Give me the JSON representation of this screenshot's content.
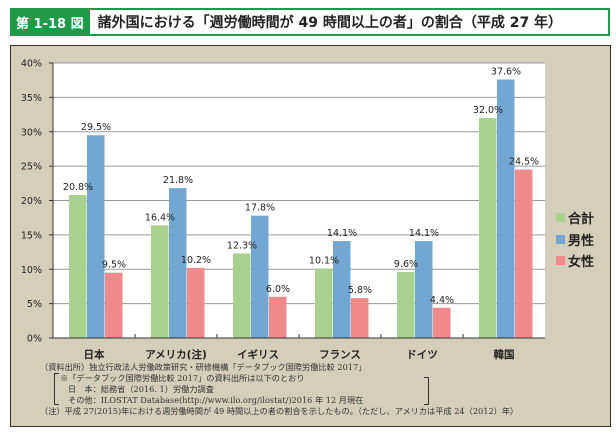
{
  "header": {
    "figure_number": "第 1-18 図",
    "title": "諸外国における「週労働時間が 49 時間以上の者」の割合（平成 27 年）"
  },
  "chart_data": {
    "type": "bar",
    "title": "諸外国における「週労働時間が 49 時間以上の者」の割合（平成 27 年）",
    "xlabel": "",
    "ylabel": "",
    "categories": [
      "日本",
      "アメリカ(注)",
      "イギリス",
      "フランス",
      "ドイツ",
      "韓国"
    ],
    "series": [
      {
        "name": "合計",
        "color": "#a9d18e",
        "values": [
          20.8,
          16.4,
          12.3,
          10.1,
          9.6,
          32.0
        ]
      },
      {
        "name": "男性",
        "color": "#72a7d3",
        "values": [
          29.5,
          21.8,
          17.8,
          14.1,
          14.1,
          37.6
        ]
      },
      {
        "name": "女性",
        "color": "#f08a8a",
        "values": [
          9.5,
          10.2,
          6.0,
          5.8,
          4.4,
          24.5
        ]
      }
    ],
    "ylim": [
      0,
      40
    ],
    "yticks": [
      0,
      5,
      10,
      15,
      20,
      25,
      30,
      35,
      40
    ],
    "ytick_labels": [
      "0%",
      "5%",
      "10%",
      "15%",
      "20%",
      "25%",
      "30%",
      "35%",
      "40%"
    ],
    "value_format": "percent_1dp",
    "grid": true,
    "legend_position": "right"
  },
  "notes": {
    "source": "（資料出所）独立行政法人労働政策研究・研修機構「データブック国際労働比較 2017」",
    "source_sub1": "※「データブック国際労働比較 2017」の資料出所は以下のとおり",
    "source_sub2": "日　本：総務省（2016. 1）労働力調査",
    "source_sub3": "その他：ILOSTAT Database(http://www.ilo.org/ilostat/)2016 年 12 月現在",
    "note": "（注）平成 27(2015)年における週労働時間が 49 時間以上の者の割合を示したもの。（ただし、アメリカは平成 24（2012）年）"
  }
}
